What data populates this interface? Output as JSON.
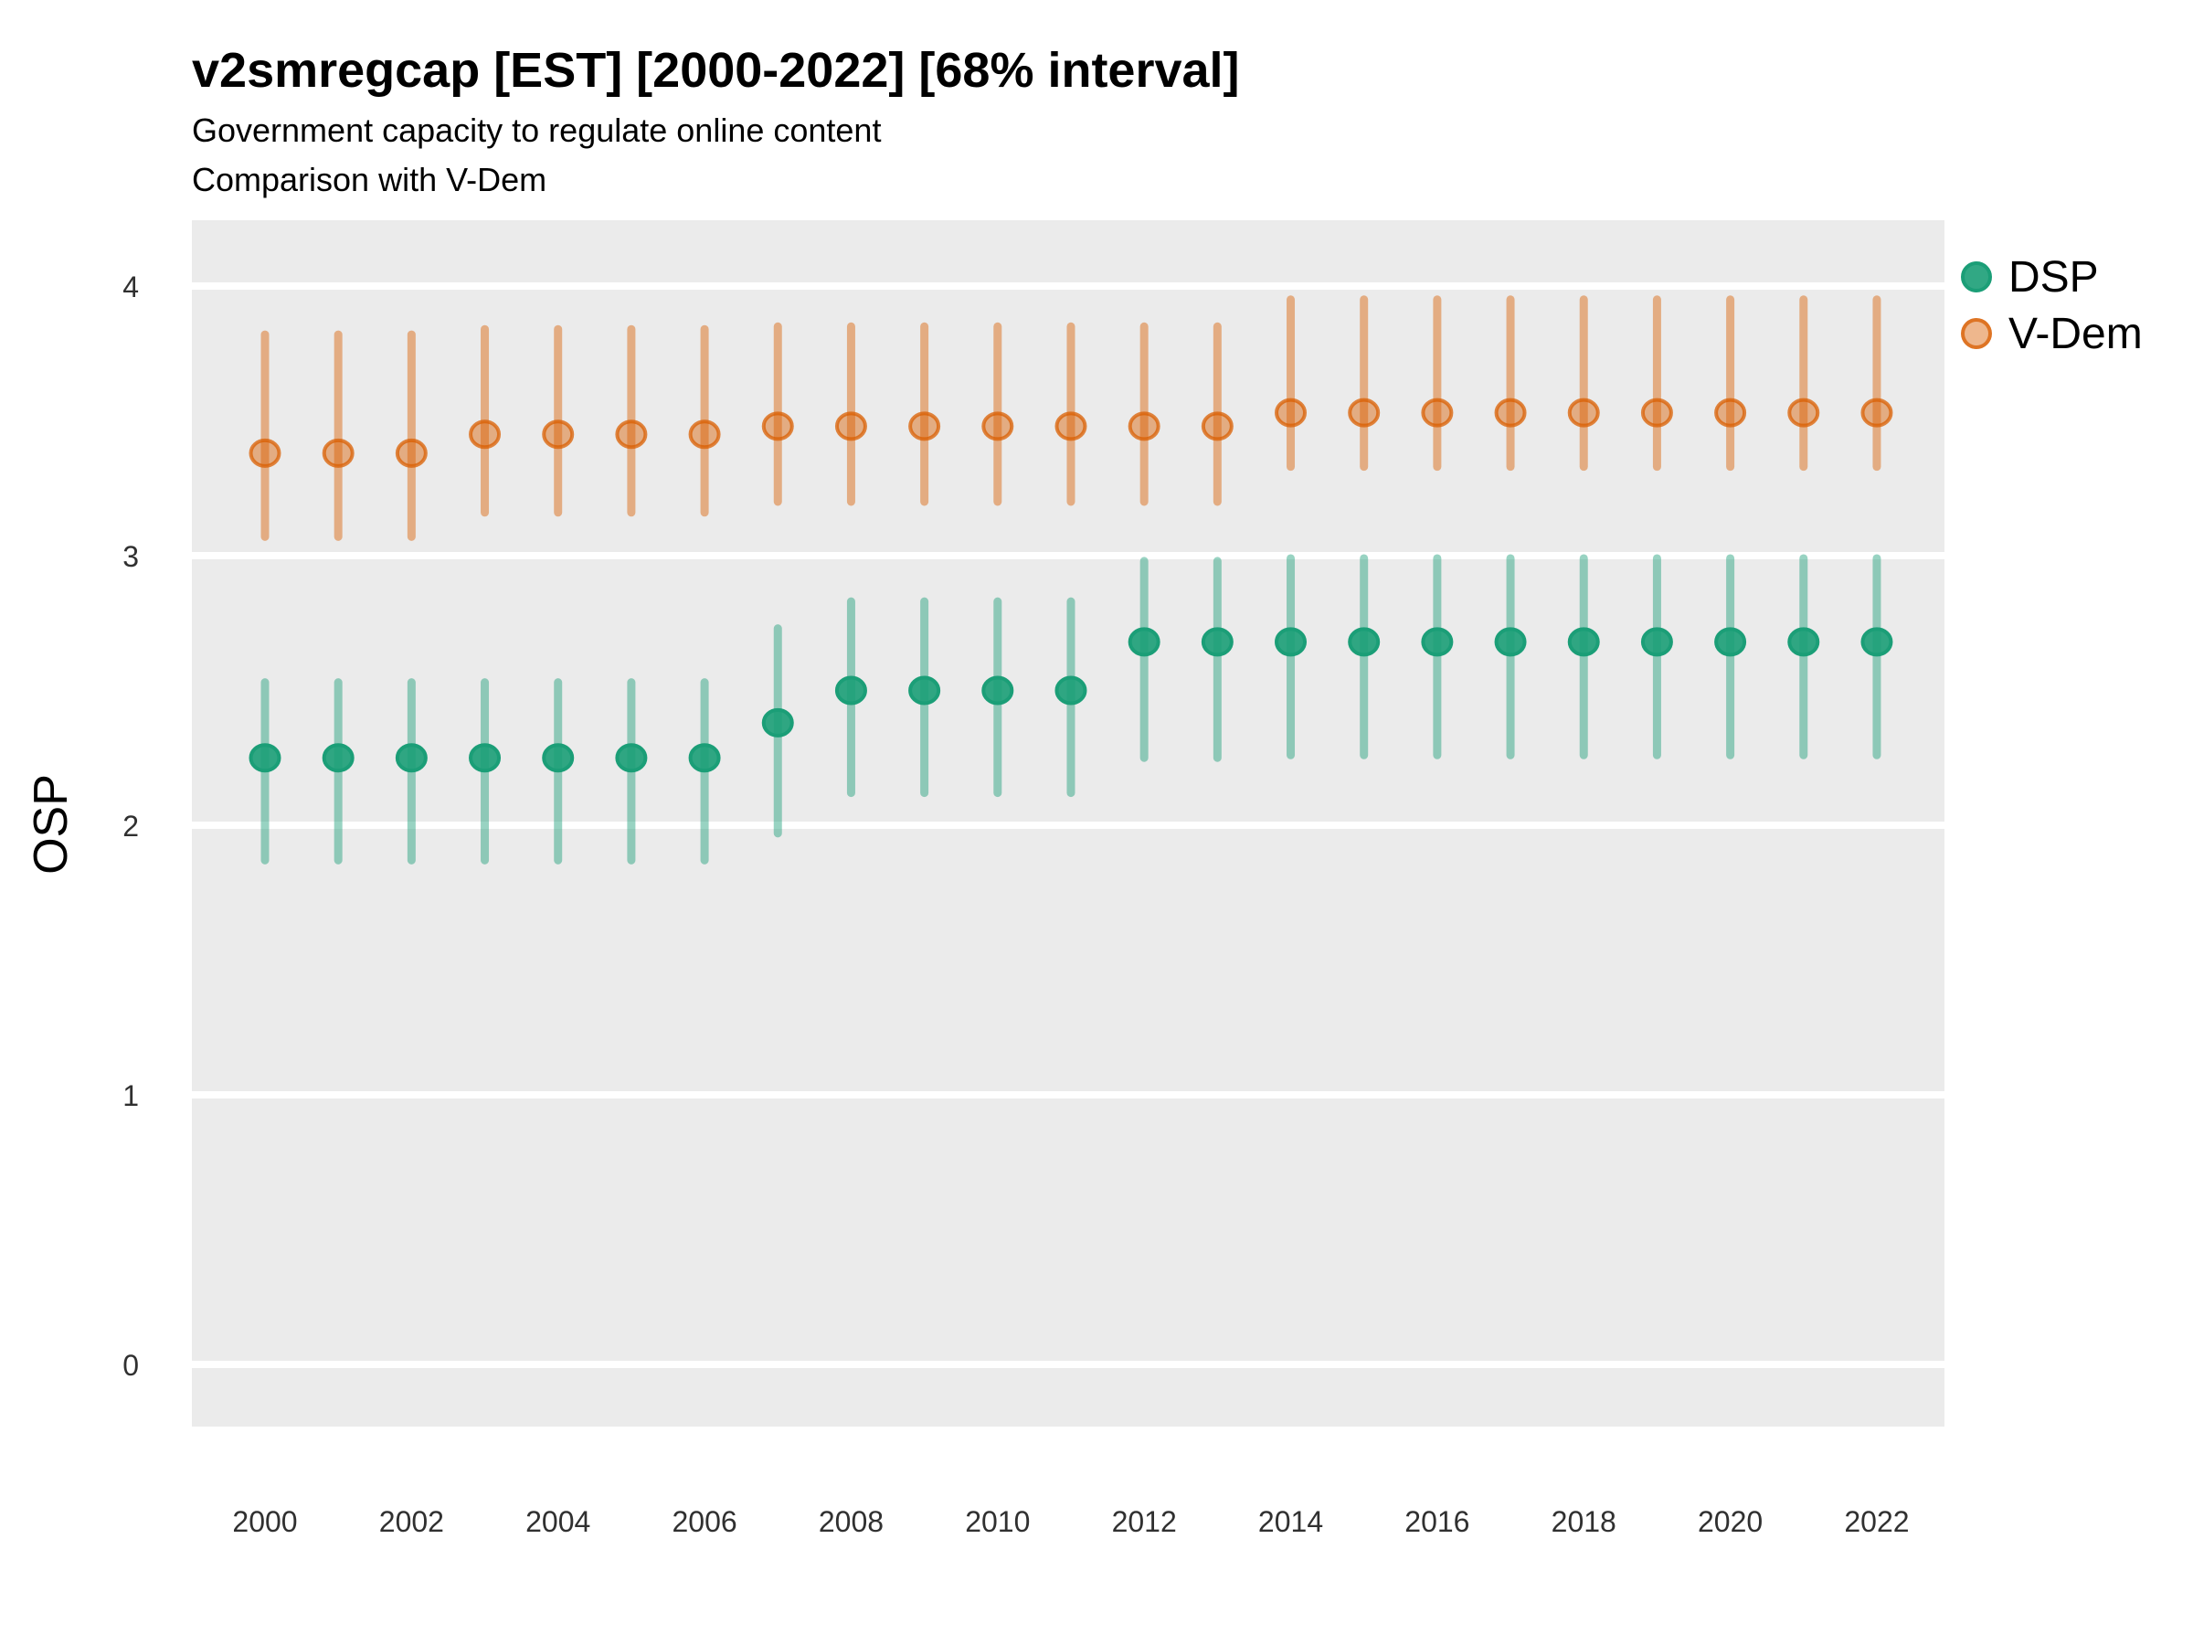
{
  "header": {
    "title": "v2smregcap [EST] [2000-2022] [68% interval]",
    "subtitle_line1": "Government capacity to regulate online content",
    "subtitle_line2": "Comparison with V-Dem"
  },
  "chart_data": {
    "type": "scatter",
    "mark": "pointrange",
    "title": "v2smregcap [EST] [2000-2022] [68% interval]",
    "subtitle": [
      "Government capacity to regulate online content",
      "Comparison with V-Dem"
    ],
    "interval": "68%",
    "xlabel": "",
    "ylabel": "OSP",
    "x": [
      2000,
      2001,
      2002,
      2003,
      2004,
      2005,
      2006,
      2007,
      2008,
      2009,
      2010,
      2011,
      2012,
      2013,
      2014,
      2015,
      2016,
      2017,
      2018,
      2019,
      2020,
      2021,
      2022
    ],
    "xticks": [
      2000,
      2002,
      2004,
      2006,
      2008,
      2010,
      2012,
      2014,
      2016,
      2018,
      2020,
      2022
    ],
    "yticks": [
      0,
      1,
      2,
      3,
      4
    ],
    "ylim": [
      -0.23,
      4.25
    ],
    "grid": "horizontal-major-only",
    "legend_position": "right",
    "panel_color": "#EBEBEB",
    "grid_color": "#FFFFFF",
    "tick_label_color": "#303030",
    "series": [
      {
        "name": "DSP",
        "color": "#1B9E77",
        "line_opacity": 0.45,
        "fill_opacity": 0.9,
        "stroke_opacity": 1,
        "values": [
          2.25,
          2.25,
          2.25,
          2.25,
          2.25,
          2.25,
          2.25,
          2.38,
          2.5,
          2.5,
          2.5,
          2.5,
          2.68,
          2.68,
          2.68,
          2.68,
          2.68,
          2.68,
          2.68,
          2.68,
          2.68,
          2.68,
          2.68
        ],
        "lower": [
          1.87,
          1.87,
          1.87,
          1.87,
          1.87,
          1.87,
          1.87,
          1.97,
          2.12,
          2.12,
          2.12,
          2.12,
          2.25,
          2.25,
          2.26,
          2.26,
          2.26,
          2.26,
          2.26,
          2.26,
          2.26,
          2.26,
          2.26
        ],
        "upper": [
          2.53,
          2.53,
          2.53,
          2.53,
          2.53,
          2.53,
          2.53,
          2.73,
          2.83,
          2.83,
          2.83,
          2.83,
          2.98,
          2.98,
          2.99,
          2.99,
          2.99,
          2.99,
          2.99,
          2.99,
          2.99,
          2.99,
          2.99
        ]
      },
      {
        "name": "V-Dem",
        "color": "#D95F02",
        "line_opacity": 0.45,
        "fill_opacity": 0.45,
        "stroke_opacity": 0.75,
        "values": [
          3.38,
          3.38,
          3.38,
          3.45,
          3.45,
          3.45,
          3.45,
          3.48,
          3.48,
          3.48,
          3.48,
          3.48,
          3.48,
          3.48,
          3.53,
          3.53,
          3.53,
          3.53,
          3.53,
          3.53,
          3.53,
          3.53,
          3.53
        ],
        "lower": [
          3.07,
          3.07,
          3.07,
          3.16,
          3.16,
          3.16,
          3.16,
          3.2,
          3.2,
          3.2,
          3.2,
          3.2,
          3.2,
          3.2,
          3.33,
          3.33,
          3.33,
          3.33,
          3.33,
          3.33,
          3.33,
          3.33,
          3.33
        ],
        "upper": [
          3.82,
          3.82,
          3.82,
          3.84,
          3.84,
          3.84,
          3.84,
          3.85,
          3.85,
          3.85,
          3.85,
          3.85,
          3.85,
          3.85,
          3.95,
          3.95,
          3.95,
          3.95,
          3.95,
          3.95,
          3.95,
          3.95,
          3.95
        ]
      }
    ]
  }
}
